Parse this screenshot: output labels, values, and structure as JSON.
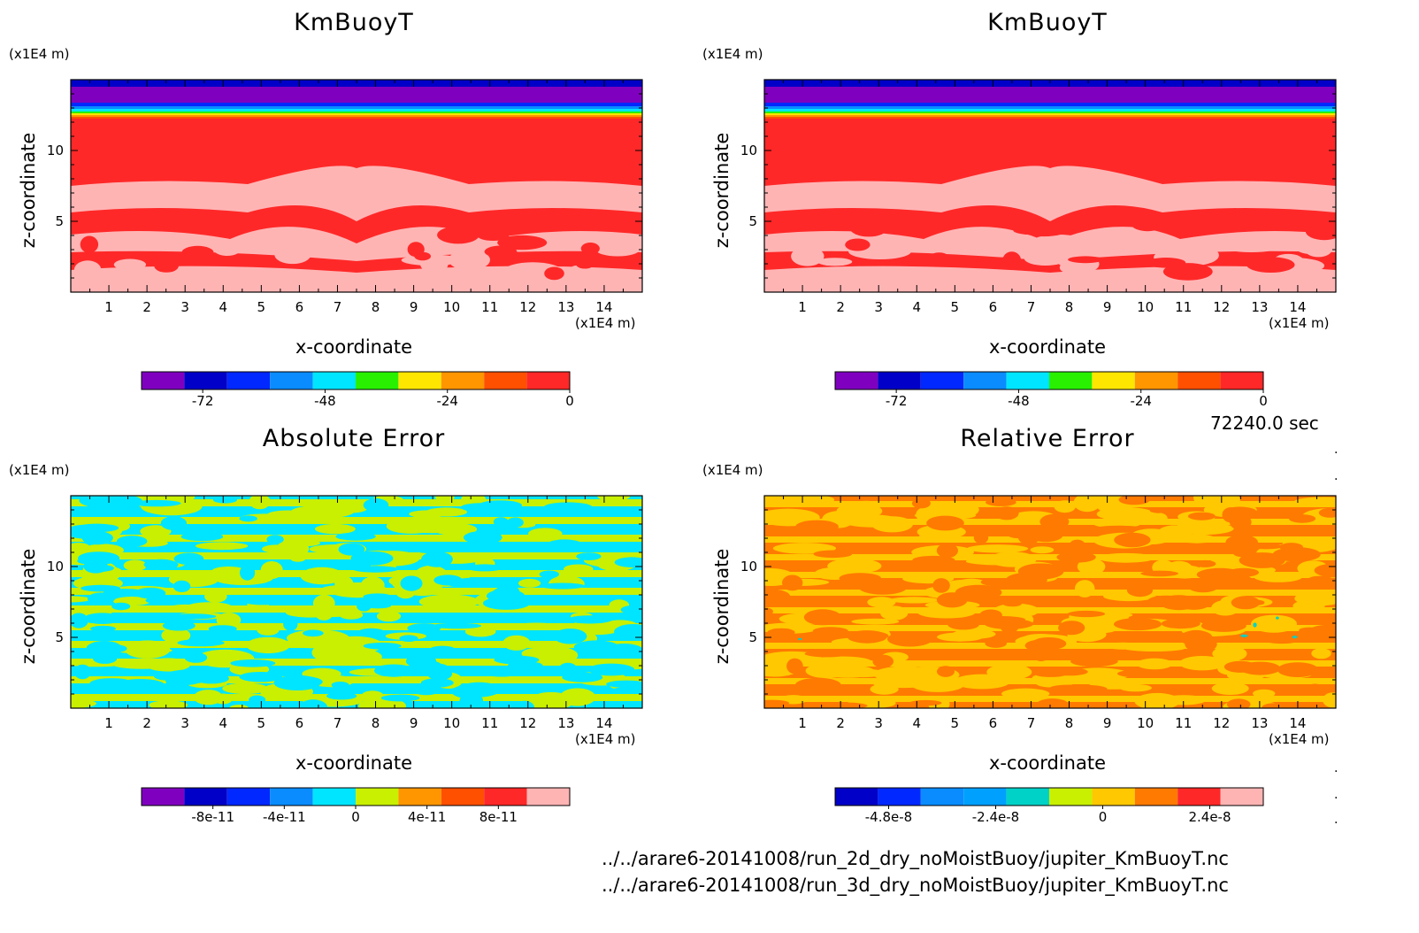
{
  "time_label": "72240.0 sec",
  "files": [
    "../../arare6-20141008/run_2d_dry_noMoistBuoy/jupiter_KmBuoyT.nc",
    "../../arare6-20141008/run_3d_dry_noMoistBuoy/jupiter_KmBuoyT.nc"
  ],
  "colors": {
    "purple": "#8000c0",
    "navy": "#0000c8",
    "blue": "#0028ff",
    "midblue": "#0a8cff",
    "cyan": "#00e5ff",
    "green": "#28f000",
    "yellow": "#ffe600",
    "orange": "#ff9600",
    "redorange": "#ff5000",
    "red": "#ff2828",
    "pink": "#ffb4b4",
    "lime": "#c8f000",
    "teal": "#00d2c8",
    "darkorange": "#ff7a00",
    "gold": "#ffc800"
  },
  "chart_data": [
    {
      "type": "heatmap",
      "title": "KmBuoyT",
      "xlabel": "x-coordinate",
      "ylabel": "z-coordinate",
      "x_unit": "(x1E4 m)",
      "z_unit": "(x1E4 m)",
      "xlim": [
        0,
        15
      ],
      "zlim": [
        0,
        15
      ],
      "x_ticks": [
        "1",
        "2",
        "3",
        "4",
        "5",
        "6",
        "7",
        "8",
        "9",
        "10",
        "11",
        "12",
        "13",
        "14"
      ],
      "z_ticks": [
        "5",
        "10"
      ],
      "colorbar": {
        "range": [
          -84,
          0
        ],
        "levels": 10,
        "labels": [
          "-72",
          "-48",
          "-24",
          "0"
        ],
        "colors": [
          "#8000c0",
          "#0000c8",
          "#0028ff",
          "#0a8cff",
          "#00e5ff",
          "#28f000",
          "#ffe600",
          "#ff9600",
          "#ff5000",
          "#ff2828"
        ]
      },
      "dominant_value": 0
    },
    {
      "type": "heatmap",
      "title": "KmBuoyT",
      "xlabel": "x-coordinate",
      "ylabel": "z-coordinate",
      "x_unit": "(x1E4 m)",
      "z_unit": "(x1E4 m)",
      "xlim": [
        0,
        15
      ],
      "zlim": [
        0,
        15
      ],
      "x_ticks": [
        "1",
        "2",
        "3",
        "4",
        "5",
        "6",
        "7",
        "8",
        "9",
        "10",
        "11",
        "12",
        "13",
        "14"
      ],
      "z_ticks": [
        "5",
        "10"
      ],
      "colorbar": {
        "range": [
          -84,
          0
        ],
        "levels": 10,
        "labels": [
          "-72",
          "-48",
          "-24",
          "0"
        ],
        "colors": [
          "#8000c0",
          "#0000c8",
          "#0028ff",
          "#0a8cff",
          "#00e5ff",
          "#28f000",
          "#ffe600",
          "#ff9600",
          "#ff5000",
          "#ff2828"
        ]
      },
      "dominant_value": 0
    },
    {
      "type": "heatmap",
      "title": "Absolute Error",
      "xlabel": "x-coordinate",
      "ylabel": "z-coordinate",
      "x_unit": "(x1E4 m)",
      "z_unit": "(x1E4 m)",
      "xlim": [
        0,
        15
      ],
      "zlim": [
        0,
        15
      ],
      "x_ticks": [
        "1",
        "2",
        "3",
        "4",
        "5",
        "6",
        "7",
        "8",
        "9",
        "10",
        "11",
        "12",
        "13",
        "14"
      ],
      "z_ticks": [
        "5",
        "10"
      ],
      "colorbar": {
        "range": [
          -1.2e-10,
          1.2e-10
        ],
        "levels": 10,
        "labels": [
          "-8e-11",
          "-4e-11",
          "0",
          "4e-11",
          "8e-11"
        ],
        "colors": [
          "#8000c0",
          "#0000c8",
          "#0028ff",
          "#0a8cff",
          "#00e5ff",
          "#c8f000",
          "#ff9600",
          "#ff5000",
          "#ff2828",
          "#ffb4b4"
        ]
      },
      "dominant_value": 0
    },
    {
      "type": "heatmap",
      "title": "Relative Error",
      "xlabel": "x-coordinate",
      "ylabel": "z-coordinate",
      "x_unit": "(x1E4 m)",
      "z_unit": "(x1E4 m)",
      "xlim": [
        0,
        15
      ],
      "zlim": [
        0,
        15
      ],
      "x_ticks": [
        "1",
        "2",
        "3",
        "4",
        "5",
        "6",
        "7",
        "8",
        "9",
        "10",
        "11",
        "12",
        "13",
        "14"
      ],
      "z_ticks": [
        "5",
        "10"
      ],
      "colorbar": {
        "range": [
          -6e-08,
          3.6e-08
        ],
        "levels": 10,
        "labels": [
          "-4.8e-8",
          "-2.4e-8",
          "0",
          "2.4e-8"
        ],
        "colors": [
          "#0000c8",
          "#0028ff",
          "#0a8cff",
          "#00a0ff",
          "#00d2c8",
          "#c8f000",
          "#ffc800",
          "#ff7a00",
          "#ff2828",
          "#ffb4b4"
        ]
      },
      "dominant_value": 0
    }
  ]
}
